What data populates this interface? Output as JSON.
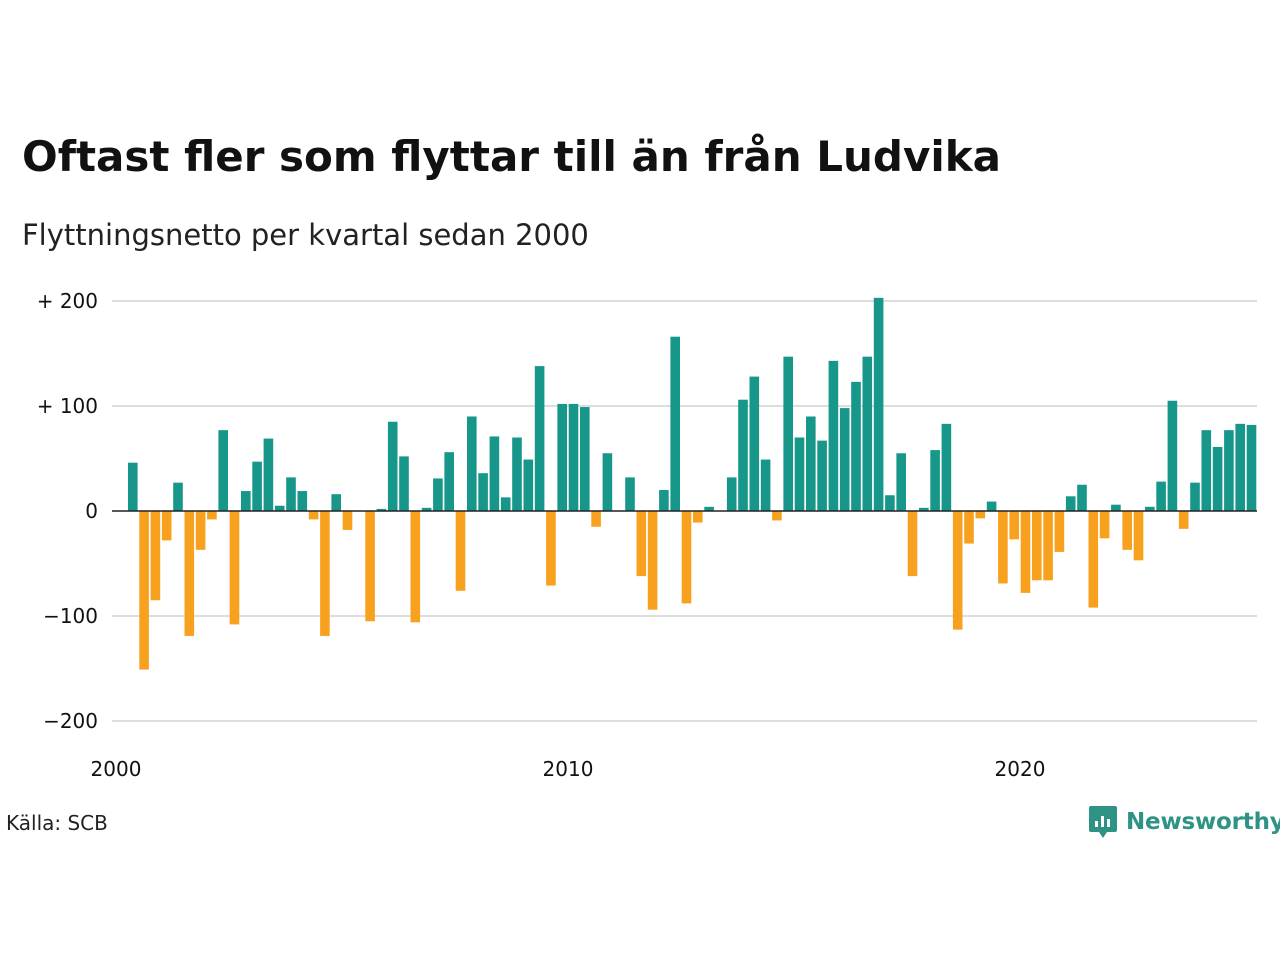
{
  "header": {
    "title": "Oftast fler som flyttar till än från Ludvika",
    "subtitle": "Flyttningsnetto per kvartal sedan 2000"
  },
  "footer": {
    "source": "Källa: SCB",
    "brand": "Newsworthy"
  },
  "colors": {
    "positive": "#17968a",
    "negative": "#f7a11e",
    "brand": "#2e9384",
    "grid": "#dddddd"
  },
  "chart_data": {
    "type": "bar",
    "x_start": 2000,
    "y_ticks": [
      {
        "value": 200,
        "label": "+ 200"
      },
      {
        "value": 100,
        "label": "+ 100"
      },
      {
        "value": 0,
        "label": "0"
      },
      {
        "value": -100,
        "label": "−100"
      },
      {
        "value": -200,
        "label": "−200"
      }
    ],
    "x_ticks": [
      {
        "value": 2000,
        "label": "2000"
      },
      {
        "value": 2010,
        "label": "2010"
      },
      {
        "value": 2020,
        "label": "2020"
      }
    ],
    "ylim": [
      -200,
      200
    ],
    "xlim": [
      2000,
      2025.75
    ],
    "grid": true,
    "legend": "none",
    "values": [
      46,
      -151,
      -85,
      -28,
      27,
      -119,
      -37,
      -8,
      77,
      -108,
      19,
      47,
      69,
      5,
      32,
      19,
      -8,
      -119,
      16,
      -18,
      0,
      -105,
      2,
      85,
      52,
      -106,
      3,
      31,
      56,
      -76,
      90,
      36,
      71,
      13,
      70,
      49,
      138,
      -71,
      102,
      102,
      99,
      -15,
      55,
      0,
      32,
      -62,
      -94,
      20,
      166,
      -88,
      -11,
      4,
      0,
      32,
      106,
      128,
      49,
      -9,
      147,
      70,
      90,
      67,
      143,
      98,
      123,
      147,
      203,
      15,
      55,
      -62,
      3,
      58,
      83,
      -113,
      -31,
      -7,
      9,
      -69,
      -27,
      -78,
      -66,
      -66,
      -39,
      14,
      25,
      -92,
      -26,
      6,
      -37,
      -47,
      4,
      28,
      105,
      -17,
      27,
      77,
      61,
      77,
      83,
      82
    ]
  }
}
